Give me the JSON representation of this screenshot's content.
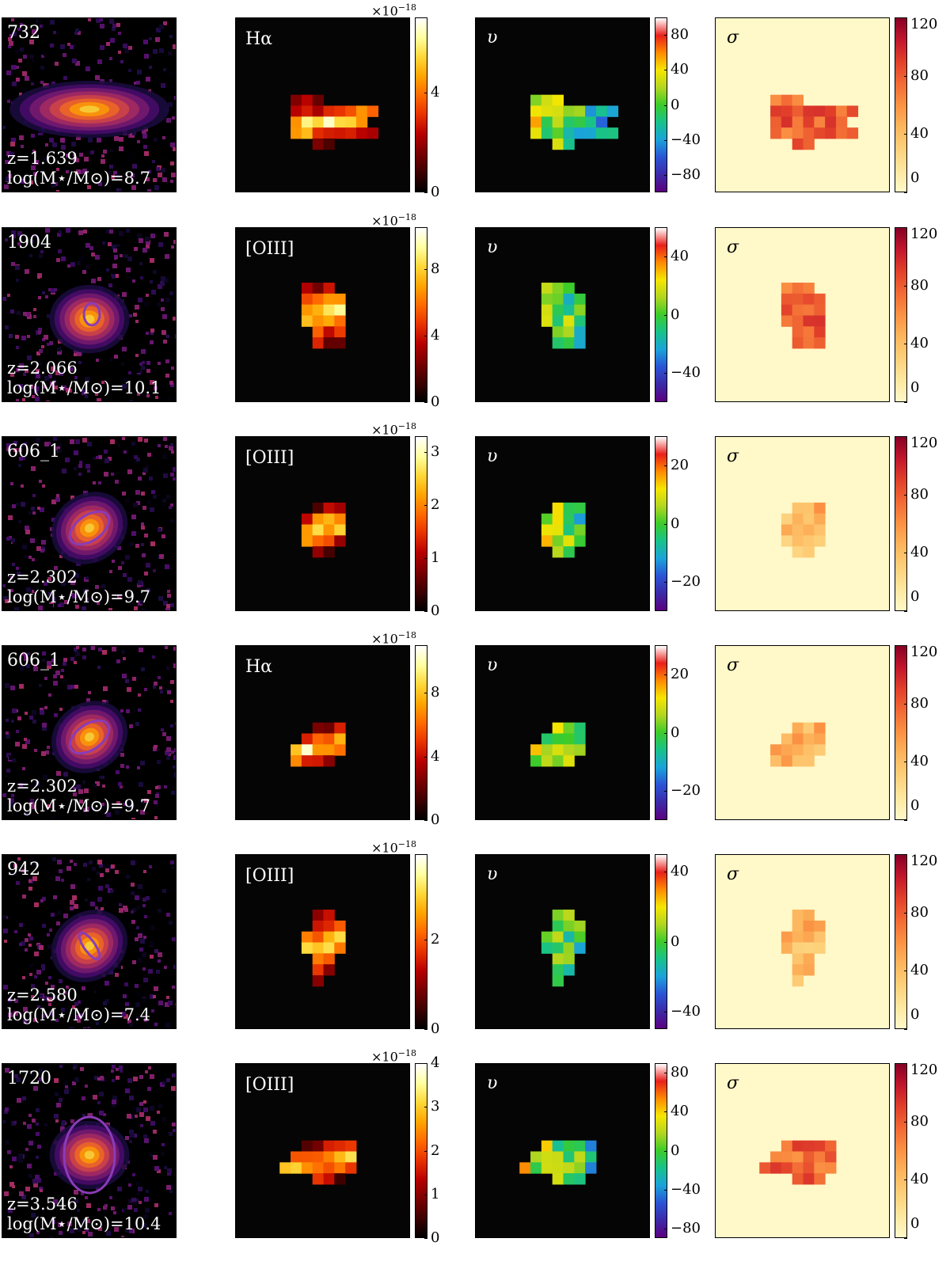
{
  "colormaps": {
    "inferno": [
      "#000004",
      "#1b0c41",
      "#4a0c6b",
      "#781c6d",
      "#a52c60",
      "#cf4446",
      "#ed6925",
      "#fb9b06",
      "#f7d13d",
      "#fcffa4"
    ],
    "hot": [
      "#000000",
      "#3d0000",
      "#7a0000",
      "#b80000",
      "#e83200",
      "#ff6a00",
      "#ffa500",
      "#ffd83a",
      "#ffffa0",
      "#ffffff"
    ],
    "velocity": [
      "#5b007f",
      "#3b2aa8",
      "#2a55d6",
      "#1aa3d9",
      "#18c28a",
      "#3ccc2a",
      "#b3d620",
      "#f5e600",
      "#ff8a00",
      "#e8201a",
      "#ffffff"
    ],
    "sigma": [
      "#fff8c8",
      "#fde7a0",
      "#fdd07a",
      "#fdb55c",
      "#fb9243",
      "#f26a34",
      "#e2402a",
      "#c2162c",
      "#880026"
    ]
  },
  "rows": [
    {
      "id": "732",
      "redshift": "z=1.639",
      "mass_label": "log(M⋆/M⊙)=8.7",
      "line": "Hα",
      "flux_scale": "×10",
      "flux_exp": "−18",
      "flux_ticks": [
        "4",
        "0"
      ],
      "flux_max": 7,
      "v_ticks": [
        "80",
        "40",
        "0",
        "−40",
        "−80"
      ],
      "v_range": [
        -100,
        100
      ],
      "sigma_ticks": [
        "120",
        "80",
        "40",
        "0"
      ]
    },
    {
      "id": "1904",
      "redshift": "z=2.066",
      "mass_label": "log(M⋆/M⊙)=10.1",
      "line": "[OIII]",
      "flux_scale": "×10",
      "flux_exp": "−18",
      "flux_ticks": [
        "8",
        "4",
        "0"
      ],
      "flux_max": 10.5,
      "v_ticks": [
        "40",
        "0",
        "−40"
      ],
      "v_range": [
        -60,
        60
      ],
      "sigma_ticks": [
        "120",
        "80",
        "40",
        "0"
      ]
    },
    {
      "id": "606_1",
      "redshift": "z=2.302",
      "mass_label": "log(M⋆/M⊙)=9.7",
      "line": "[OIII]",
      "flux_scale": "×10",
      "flux_exp": "−18",
      "flux_ticks": [
        "3",
        "2",
        "1",
        "0"
      ],
      "flux_max": 3.3,
      "v_ticks": [
        "20",
        "0",
        "−20"
      ],
      "v_range": [
        -30,
        30
      ],
      "sigma_ticks": [
        "120",
        "80",
        "40",
        "0"
      ]
    },
    {
      "id": "606_1",
      "redshift": "z=2.302",
      "mass_label": "log(M⋆/M⊙)=9.7",
      "line": "Hα",
      "flux_scale": "×10",
      "flux_exp": "−18",
      "flux_ticks": [
        "8",
        "4",
        "0"
      ],
      "flux_max": 11,
      "v_ticks": [
        "20",
        "0",
        "−20"
      ],
      "v_range": [
        -30,
        30
      ],
      "sigma_ticks": [
        "120",
        "80",
        "40",
        "0"
      ]
    },
    {
      "id": "942",
      "redshift": "z=2.580",
      "mass_label": "log(M⋆/M⊙)=7.4",
      "line": "[OIII]",
      "flux_scale": "×10",
      "flux_exp": "−18",
      "flux_ticks": [
        "2",
        "0"
      ],
      "flux_max": 3.9,
      "v_ticks": [
        "40",
        "0",
        "−40"
      ],
      "v_range": [
        -50,
        50
      ],
      "sigma_ticks": [
        "120",
        "80",
        "40",
        "0"
      ]
    },
    {
      "id": "1720",
      "redshift": "z=3.546",
      "mass_label": "log(M⋆/M⊙)=10.4",
      "line": "[OIII]",
      "flux_scale": "×10",
      "flux_exp": "−18",
      "flux_ticks": [
        "4",
        "3",
        "2",
        "1",
        "0"
      ],
      "flux_max": 4,
      "v_ticks": [
        "80",
        "40",
        "0",
        "−40",
        "−80"
      ],
      "v_range": [
        -90,
        90
      ],
      "sigma_ticks": [
        "120",
        "80",
        "40",
        "0"
      ]
    }
  ],
  "panel_labels": {
    "velocity": "υ",
    "dispersion": "σ"
  }
}
